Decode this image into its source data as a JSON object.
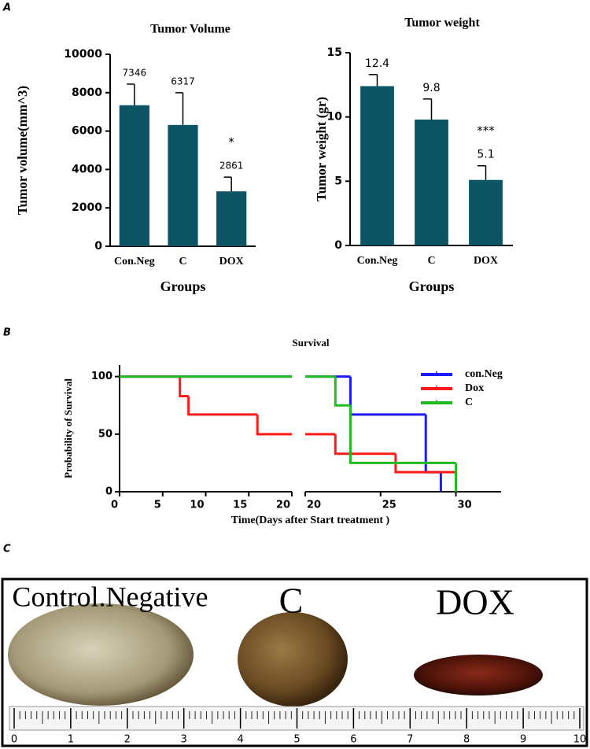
{
  "panel_labels": [
    "A",
    "B",
    "C"
  ],
  "chart_data": [
    {
      "type": "bar",
      "title": "Tumor Volume",
      "x_label": "Groups",
      "y_label": "Tumor volume(mm^3)",
      "categories": [
        "Con.Neg",
        "C",
        "DOX"
      ],
      "values": [
        7346,
        6317,
        2861
      ],
      "errors": [
        1100,
        1680,
        740
      ],
      "annotations": [
        {
          "category": "DOX",
          "text": "*"
        }
      ],
      "color": "#0d5565",
      "ylim": [
        0,
        10000
      ],
      "yticks": [
        0,
        2000,
        4000,
        6000,
        8000,
        10000
      ]
    },
    {
      "type": "bar",
      "title": "Tumor weight",
      "x_label": "Groups",
      "y_label": "Tumor weight (gr)",
      "categories": [
        "Con.Neg",
        "C",
        "DOX"
      ],
      "values": [
        12.4,
        9.8,
        5.1
      ],
      "errors": [
        0.9,
        1.6,
        1.1
      ],
      "annotations": [
        {
          "category": "DOX",
          "text": "***"
        }
      ],
      "color": "#0d5565",
      "ylim": [
        0,
        15
      ],
      "yticks": [
        0,
        5,
        10,
        15
      ]
    },
    {
      "type": "step",
      "title": "Survival",
      "x_label": "Time(Days after Start treatment )",
      "y_label": "Probability of Survival",
      "xlim_segments": [
        [
          0,
          20
        ],
        [
          20,
          33
        ]
      ],
      "xticks_segments": [
        [
          0,
          5,
          10,
          15,
          20
        ],
        [
          20,
          25,
          30
        ]
      ],
      "ylim": [
        0,
        110
      ],
      "yticks": [
        0,
        50,
        100
      ],
      "legend": "upper right",
      "series": [
        {
          "name": "con.Neg",
          "color": "#1a1aff",
          "x": [
            0,
            23,
            28,
            29
          ],
          "values": [
            100,
            67,
            17,
            0
          ]
        },
        {
          "name": "Dox",
          "color": "#ff1a1a",
          "x": [
            0,
            7,
            8,
            16,
            22,
            26,
            30
          ],
          "values": [
            100,
            83,
            67,
            50,
            33,
            17,
            0
          ]
        },
        {
          "name": "C",
          "color": "#22bb22",
          "x": [
            0,
            22,
            23,
            30
          ],
          "values": [
            100,
            75,
            25,
            0
          ]
        }
      ]
    }
  ],
  "photo": {
    "labels": [
      "Control.Negative",
      "C",
      "DOX"
    ],
    "ruler_ticks": [
      0,
      1,
      2,
      3,
      4,
      5,
      6,
      7,
      8,
      9,
      10
    ]
  }
}
